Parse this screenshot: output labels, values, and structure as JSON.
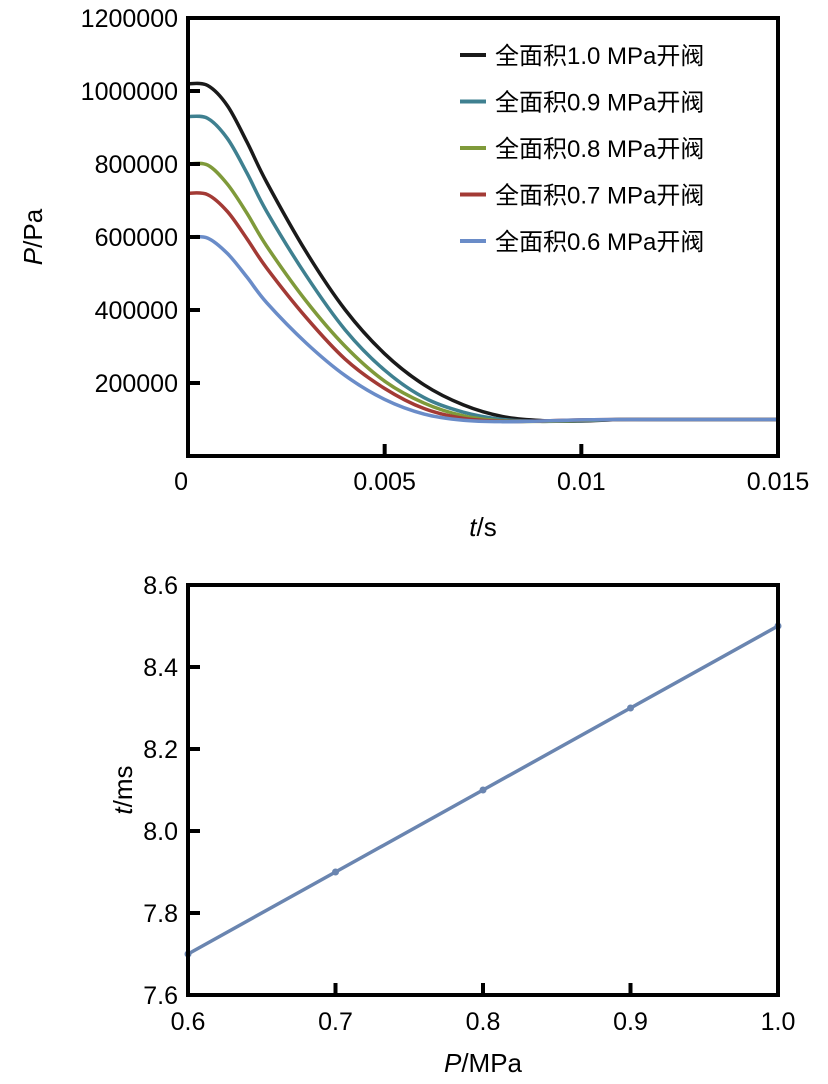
{
  "chart_data": [
    {
      "type": "line",
      "xlabel_italic": "t",
      "xlabel_rest": "/s",
      "ylabel_italic": "P",
      "ylabel_rest": "/Pa",
      "xlim": [
        0,
        0.015
      ],
      "ylim": [
        0,
        1200000
      ],
      "xticks": [
        0,
        0.005,
        0.01,
        0.015
      ],
      "xtick_labels": [
        "0",
        "0.005",
        "0.01",
        "0.015"
      ],
      "yticks": [
        200000,
        400000,
        600000,
        800000,
        1000000,
        1200000
      ],
      "ytick_labels": [
        "200000",
        "400000",
        "600000",
        "800000",
        "1000000",
        "1200000"
      ],
      "grid": false,
      "legend_position": "top-right",
      "x": [
        0,
        0.0005,
        0.001,
        0.0015,
        0.002,
        0.003,
        0.004,
        0.005,
        0.006,
        0.007,
        0.008,
        0.009,
        0.01,
        0.011,
        0.012,
        0.015
      ],
      "series": [
        {
          "name": "全面积1.0 MPa开阀",
          "color": "#1a1a1a",
          "values": [
            1020000,
            1015000,
            960000,
            860000,
            750000,
            560000,
            400000,
            280000,
            195000,
            140000,
            108000,
            97000,
            96000,
            100000,
            100000,
            100000
          ]
        },
        {
          "name": "全面积0.9 MPa开阀",
          "color": "#3f8090",
          "values": [
            930000,
            925000,
            870000,
            775000,
            670000,
            495000,
            345000,
            235000,
            160000,
            120000,
            100000,
            95000,
            97000,
            100000,
            100000,
            100000
          ]
        },
        {
          "name": "全面积0.8 MPa开阀",
          "color": "#7f9a3a",
          "values": [
            800000,
            797000,
            745000,
            665000,
            575000,
            425000,
            300000,
            205000,
            145000,
            110000,
            96000,
            95000,
            98000,
            100000,
            100000,
            100000
          ]
        },
        {
          "name": "全面积0.7 MPa开阀",
          "color": "#a33a35",
          "values": [
            720000,
            716000,
            670000,
            595000,
            515000,
            380000,
            265000,
            185000,
            130000,
            103000,
            95000,
            96000,
            99000,
            100000,
            100000,
            100000
          ]
        },
        {
          "name": "全面积0.6 MPa开阀",
          "color": "#6a8cc8",
          "values": [
            600000,
            597000,
            555000,
            490000,
            420000,
            310000,
            220000,
            155000,
            115000,
            98000,
            94000,
            96000,
            99000,
            100000,
            100000,
            100000
          ]
        }
      ]
    },
    {
      "type": "line",
      "xlabel_italic": "P",
      "xlabel_rest": "/MPa",
      "ylabel_italic": "t",
      "ylabel_rest": "/ms",
      "xlim": [
        0.6,
        1.0
      ],
      "ylim": [
        7.6,
        8.6
      ],
      "xticks": [
        0.6,
        0.7,
        0.8,
        0.9,
        1.0
      ],
      "xtick_labels": [
        "0.6",
        "0.7",
        "0.8",
        "0.9",
        "1.0"
      ],
      "yticks": [
        7.6,
        7.8,
        8.0,
        8.2,
        8.4,
        8.6
      ],
      "ytick_labels": [
        "7.6",
        "7.8",
        "8.0",
        "8.2",
        "8.4",
        "8.6"
      ],
      "grid": false,
      "x": [
        0.6,
        0.7,
        0.8,
        0.9,
        1.0
      ],
      "series": [
        {
          "color": "#6a85b0",
          "values": [
            7.7,
            7.9,
            8.1,
            8.3,
            8.5
          ]
        }
      ]
    }
  ]
}
